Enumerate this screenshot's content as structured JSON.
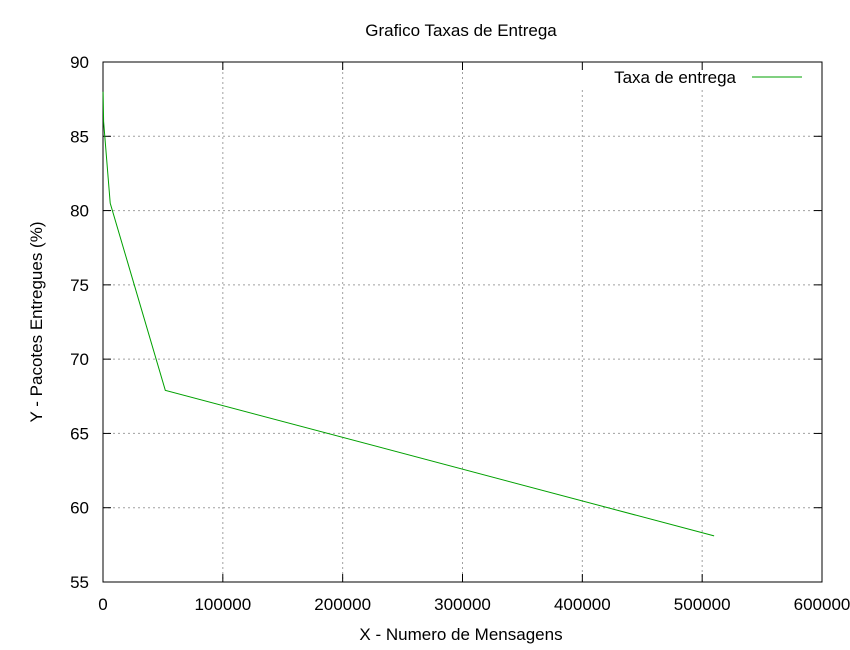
{
  "chart_data": {
    "type": "line",
    "title": "Grafico Taxas de Entrega",
    "xlabel": "X - Numero de Mensagens",
    "ylabel": "Y - Pacotes Entregues (%)",
    "xlim": [
      0,
      600000
    ],
    "ylim": [
      55,
      90
    ],
    "xticks": [
      0,
      100000,
      200000,
      300000,
      400000,
      500000,
      600000
    ],
    "yticks": [
      55,
      60,
      65,
      70,
      75,
      80,
      85,
      90
    ],
    "grid": true,
    "legend_position": "top-right",
    "series": [
      {
        "name": "Taxa de entrega",
        "color": "#00a000",
        "x": [
          100,
          500,
          1000,
          5000,
          6000,
          52000,
          510000
        ],
        "y": [
          88.0,
          86.0,
          85.5,
          81.5,
          80.5,
          67.9,
          58.1
        ]
      }
    ]
  }
}
